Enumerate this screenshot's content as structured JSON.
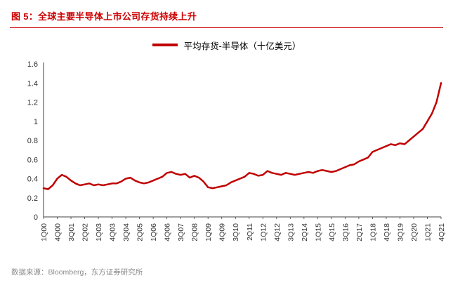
{
  "header": {
    "title": "图 5：全球主要半导体上市公司存货持续上升"
  },
  "legend": {
    "label": "平均存货-半导体（十亿美元）"
  },
  "footer": {
    "source": "数据来源：Bloomberg，东方证券研究所"
  },
  "colors": {
    "line": "#c00000",
    "title_red": "#cc0000",
    "axis": "#404040",
    "tick_text": "#333333",
    "source_gray": "#8a8a8a"
  },
  "chart_data": {
    "type": "line",
    "title": "平均存货-半导体（十亿美元）",
    "xlabel": "",
    "ylabel": "",
    "ylim": [
      0,
      1.6
    ],
    "grid": false,
    "legend_position": "top",
    "ytick_values": [
      0,
      0.2,
      0.4,
      0.6,
      0.8,
      1,
      1.2,
      1.4,
      1.6
    ],
    "ytick_labels": [
      "0",
      "0.2",
      "0.4",
      "0.6",
      "0.8",
      "1",
      "1.2",
      "1.4",
      "1.6"
    ],
    "xtick_labels": [
      "1Q00",
      "4Q00",
      "3Q01",
      "2Q02",
      "1Q03",
      "4Q03",
      "3Q04",
      "2Q05",
      "1Q06",
      "4Q06",
      "3Q07",
      "2Q08",
      "1Q09",
      "4Q09",
      "3Q10",
      "2Q11",
      "1Q12",
      "4Q12",
      "3Q13",
      "2Q14",
      "1Q15",
      "4Q15",
      "3Q16",
      "2Q17",
      "1Q18",
      "4Q18",
      "3Q19",
      "2Q20",
      "1Q21",
      "4Q21"
    ],
    "xtick_step": 3,
    "series": [
      {
        "name": "平均存货-半导体",
        "values": [
          0.3,
          0.29,
          0.33,
          0.4,
          0.44,
          0.42,
          0.38,
          0.35,
          0.33,
          0.34,
          0.35,
          0.33,
          0.34,
          0.33,
          0.34,
          0.35,
          0.35,
          0.37,
          0.4,
          0.41,
          0.38,
          0.36,
          0.35,
          0.36,
          0.38,
          0.4,
          0.42,
          0.46,
          0.47,
          0.45,
          0.44,
          0.45,
          0.41,
          0.43,
          0.41,
          0.37,
          0.31,
          0.3,
          0.31,
          0.32,
          0.33,
          0.36,
          0.38,
          0.4,
          0.42,
          0.46,
          0.45,
          0.43,
          0.44,
          0.48,
          0.46,
          0.45,
          0.44,
          0.46,
          0.45,
          0.44,
          0.45,
          0.46,
          0.47,
          0.46,
          0.48,
          0.49,
          0.48,
          0.47,
          0.48,
          0.5,
          0.52,
          0.54,
          0.55,
          0.58,
          0.6,
          0.62,
          0.68,
          0.7,
          0.72,
          0.74,
          0.76,
          0.75,
          0.77,
          0.76,
          0.8,
          0.84,
          0.88,
          0.92,
          1.0,
          1.08,
          1.2,
          1.4
        ]
      }
    ]
  }
}
